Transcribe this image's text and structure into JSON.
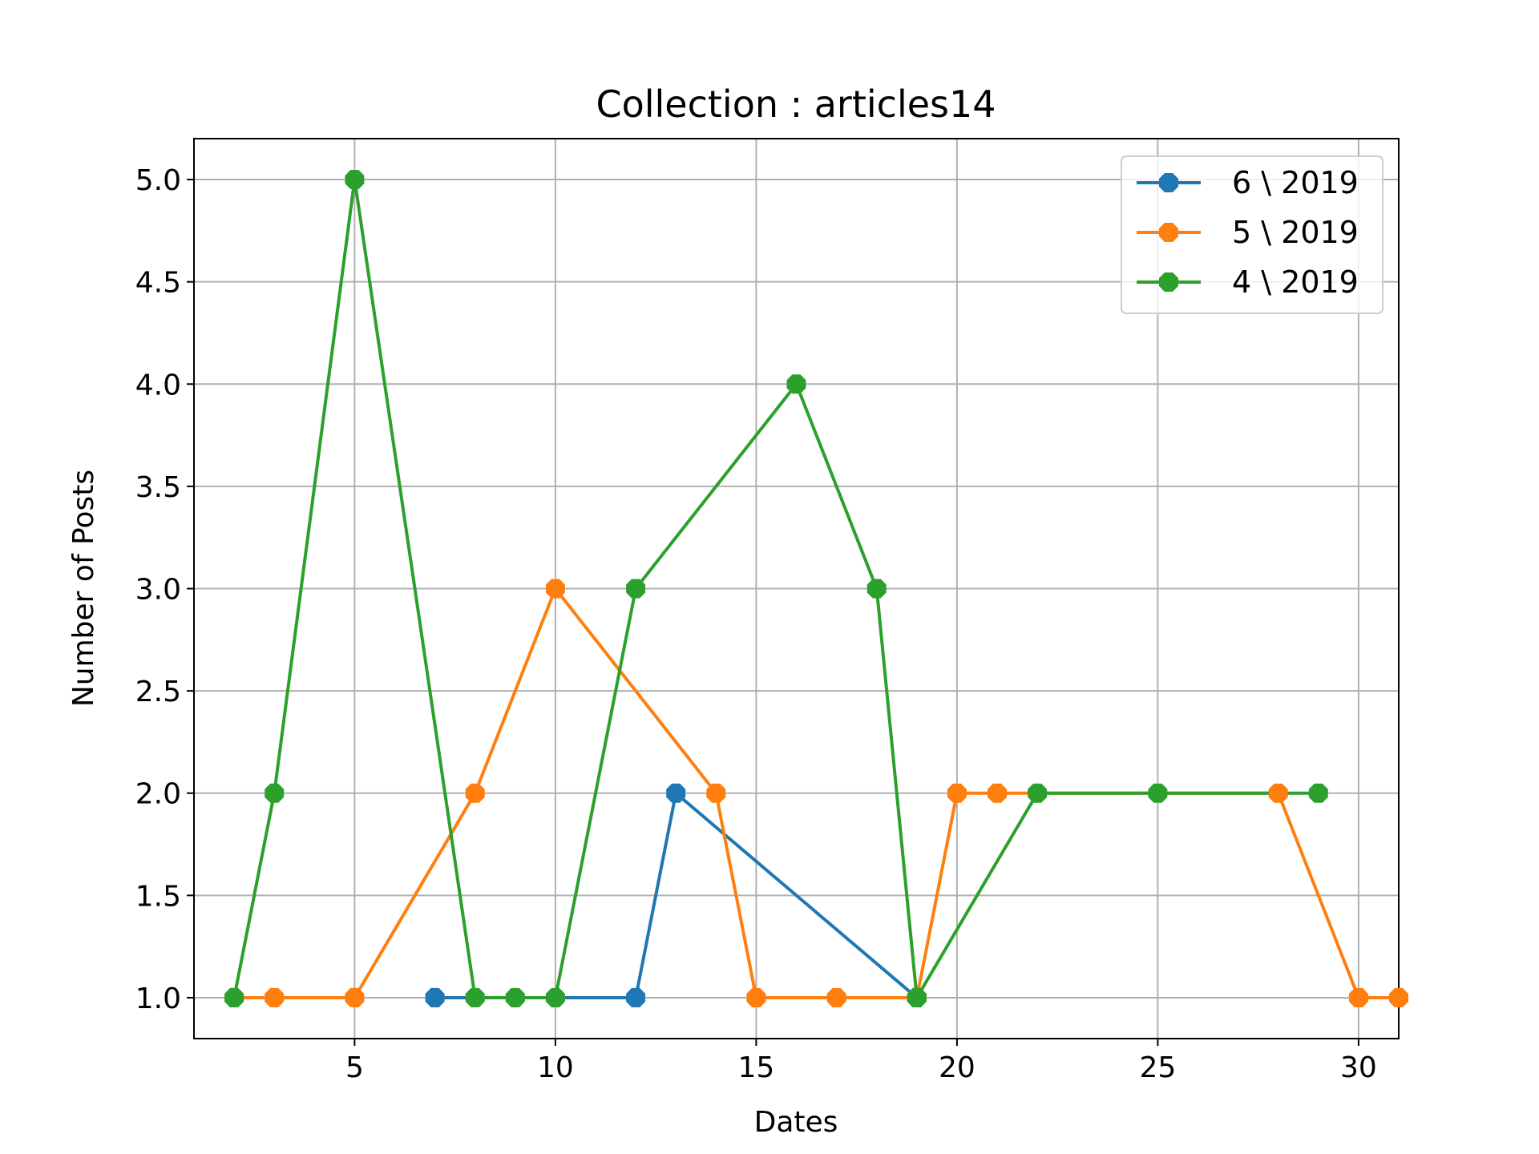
{
  "chart_data": {
    "type": "line",
    "title": "Collection : articles14",
    "xlabel": "Dates",
    "ylabel": "Number of Posts",
    "xlim": [
      1,
      31
    ],
    "ylim": [
      0.8,
      5.2
    ],
    "xticks": [
      5,
      10,
      15,
      20,
      25,
      30
    ],
    "xtick_labels": [
      "5",
      "10",
      "15",
      "20",
      "25",
      "30"
    ],
    "yticks": [
      1.0,
      1.5,
      2.0,
      2.5,
      3.0,
      3.5,
      4.0,
      4.5,
      5.0
    ],
    "ytick_labels": [
      "1.0",
      "1.5",
      "2.0",
      "2.5",
      "3.0",
      "3.5",
      "4.0",
      "4.5",
      "5.0"
    ],
    "grid": true,
    "legend_position": "top-right",
    "series": [
      {
        "name": "6 \\ 2019",
        "color": "#1f77b4",
        "x": [
          7,
          12,
          13,
          19
        ],
        "y": [
          1,
          1,
          2,
          1
        ]
      },
      {
        "name": "5 \\ 2019",
        "color": "#ff7f0e",
        "x": [
          2,
          3,
          5,
          8,
          10,
          14,
          15,
          17,
          19,
          20,
          21,
          28,
          30,
          31
        ],
        "y": [
          1,
          1,
          1,
          2,
          3,
          2,
          1,
          1,
          1,
          2,
          2,
          2,
          1,
          1
        ]
      },
      {
        "name": "4 \\ 2019",
        "color": "#2ca02c",
        "x": [
          2,
          3,
          5,
          8,
          9,
          10,
          12,
          16,
          18,
          19,
          22,
          25,
          29
        ],
        "y": [
          1,
          2,
          5,
          1,
          1,
          1,
          3,
          4,
          3,
          1,
          2,
          2,
          2
        ]
      }
    ]
  }
}
